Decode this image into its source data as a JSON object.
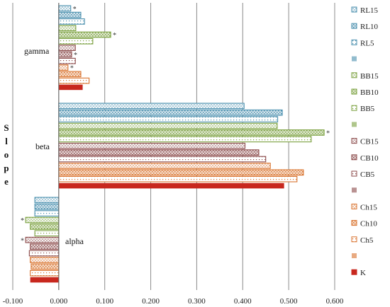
{
  "chart_data": {
    "type": "bar",
    "orientation": "horizontal",
    "ylabel": "Slope",
    "xlim": [
      -0.1,
      0.6
    ],
    "xticks": [
      "-0.100",
      "0.000",
      "0.100",
      "0.200",
      "0.300",
      "0.400",
      "0.500",
      "0.600"
    ],
    "xtick_values": [
      -0.1,
      0.0,
      0.1,
      0.2,
      0.3,
      0.4,
      0.5,
      0.6
    ],
    "grid": "vertical",
    "legend_position": "right",
    "categories": [
      "gamma",
      "beta",
      "alpha"
    ],
    "legend": [
      "RL15",
      "RL10",
      "RL5",
      "",
      "BB15",
      "BB10",
      "BB5",
      "",
      "CB15",
      "CB10",
      "CB5",
      "",
      "Ch15",
      "Ch10",
      "Ch5",
      "",
      "K"
    ],
    "series": [
      {
        "name": "RL15",
        "color": "#4a8fae",
        "pattern": "cross",
        "values": [
          0.026,
          0.403,
          -0.052
        ],
        "significant": [
          true,
          false,
          false
        ]
      },
      {
        "name": "RL10",
        "color": "#4a8fae",
        "pattern": "dots",
        "values": [
          0.048,
          0.486,
          -0.052
        ],
        "significant": [
          false,
          false,
          false
        ]
      },
      {
        "name": "RL5",
        "color": "#4a8fae",
        "pattern": "sparse",
        "values": [
          0.056,
          0.476,
          -0.052
        ],
        "significant": [
          false,
          false,
          false
        ]
      },
      {
        "name": "BB15",
        "color": "#7aa03e",
        "pattern": "cross",
        "values": [
          0.037,
          0.475,
          -0.072
        ],
        "significant": [
          false,
          false,
          true
        ]
      },
      {
        "name": "BB10",
        "color": "#7aa03e",
        "pattern": "dots",
        "values": [
          0.113,
          0.577,
          -0.062
        ],
        "significant": [
          true,
          true,
          false
        ]
      },
      {
        "name": "BB5",
        "color": "#7aa03e",
        "pattern": "sparse",
        "values": [
          0.074,
          0.549,
          -0.052
        ],
        "significant": [
          false,
          false,
          false
        ]
      },
      {
        "name": "CB15",
        "color": "#8b4a4a",
        "pattern": "cross",
        "values": [
          0.036,
          0.405,
          -0.072
        ],
        "significant": [
          false,
          false,
          true
        ]
      },
      {
        "name": "CB10",
        "color": "#8b4a4a",
        "pattern": "dots",
        "values": [
          0.028,
          0.435,
          -0.062
        ],
        "significant": [
          true,
          false,
          false
        ]
      },
      {
        "name": "CB5",
        "color": "#8b4a4a",
        "pattern": "sparse",
        "values": [
          0.036,
          0.45,
          -0.064
        ],
        "significant": [
          false,
          false,
          false
        ]
      },
      {
        "name": "Ch15",
        "color": "#d9722d",
        "pattern": "cross",
        "values": [
          0.02,
          0.46,
          -0.062
        ],
        "significant": [
          true,
          false,
          false
        ]
      },
      {
        "name": "Ch10",
        "color": "#d9722d",
        "pattern": "dots",
        "values": [
          0.048,
          0.532,
          -0.06
        ],
        "significant": [
          false,
          false,
          false
        ]
      },
      {
        "name": "Ch5",
        "color": "#d9722d",
        "pattern": "sparse",
        "values": [
          0.066,
          0.518,
          -0.062
        ],
        "significant": [
          false,
          false,
          false
        ]
      },
      {
        "name": "K",
        "color": "#c8281e",
        "pattern": "solid",
        "values": [
          0.052,
          0.49,
          -0.062
        ],
        "significant": [
          false,
          false,
          false
        ]
      }
    ]
  }
}
